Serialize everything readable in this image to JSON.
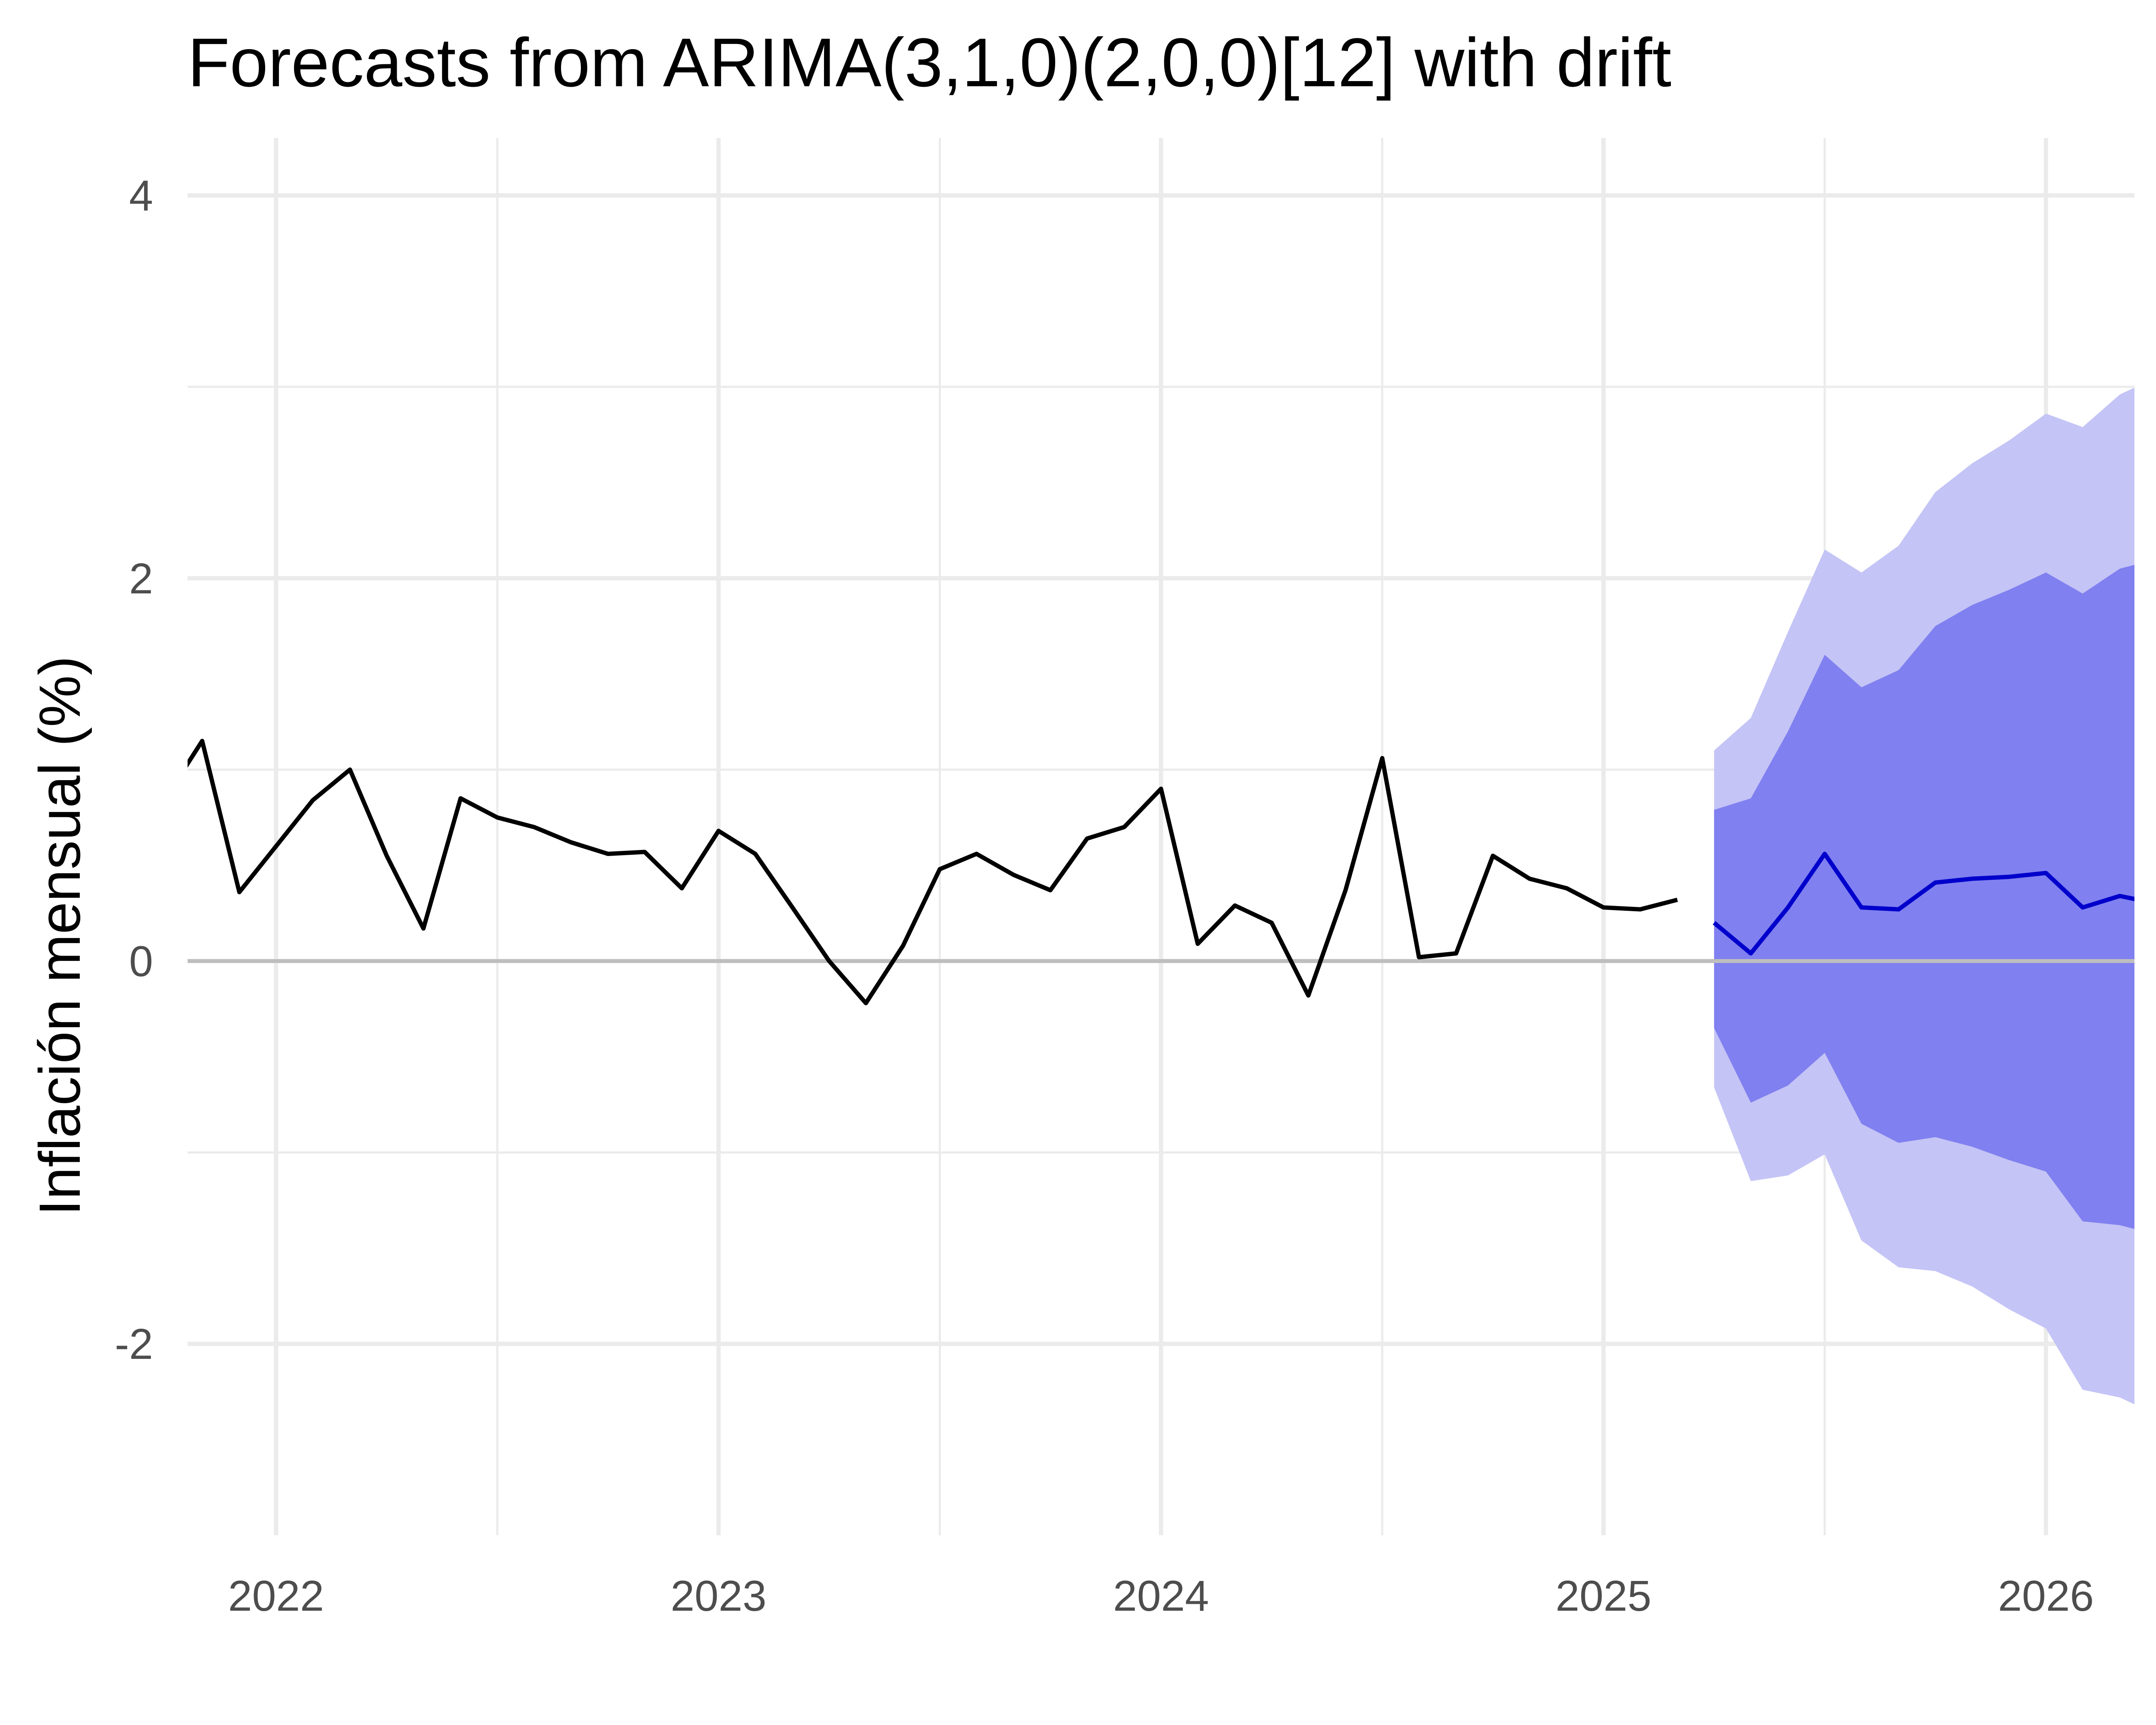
{
  "chart_data": {
    "type": "line",
    "title": "Forecasts from ARIMA(3,1,0)(2,0,0)[12] with drift",
    "xlabel": "",
    "ylabel": "Inflación mensual (%)",
    "xlim": [
      2021.8,
      2026.2
    ],
    "ylim": [
      -3.0,
      4.3
    ],
    "x_ticks": [
      2022,
      2023,
      2024,
      2025,
      2026
    ],
    "x_tick_labels": [
      "2022",
      "2023",
      "2024",
      "2025",
      "2026"
    ],
    "y_ticks": [
      -2,
      0,
      2,
      4
    ],
    "y_tick_labels": [
      "-2",
      "0",
      "2",
      "4"
    ],
    "grid": true,
    "zero_line": 0,
    "legend": "none",
    "colors": {
      "observed": "#000000",
      "forecast": "#0000cc",
      "band80": "#8080f0",
      "band95": "#c4c4f6",
      "grid": "#ebebeb",
      "zero_line": "#bebebe"
    },
    "series": [
      {
        "role": "observed",
        "x": [
          2021.75,
          2021.833,
          2021.917,
          2022.0,
          2022.083,
          2022.167,
          2022.25,
          2022.333,
          2022.417,
          2022.5,
          2022.583,
          2022.667,
          2022.75,
          2022.833,
          2022.917,
          2023.0,
          2023.083,
          2023.167,
          2023.25,
          2023.333,
          2023.417,
          2023.5,
          2023.583,
          2023.667,
          2023.75,
          2023.833,
          2023.917,
          2024.0,
          2024.083,
          2024.167,
          2024.25,
          2024.333,
          2024.417,
          2024.5,
          2024.583,
          2024.667,
          2024.75,
          2024.833,
          2024.917,
          2025.0,
          2025.083,
          2025.167
        ],
        "values": [
          0.85,
          1.15,
          0.36,
          0.6,
          0.84,
          1.0,
          0.55,
          0.17,
          0.85,
          0.75,
          0.7,
          0.62,
          0.56,
          0.57,
          0.38,
          0.68,
          0.56,
          0.28,
          0.0,
          -0.22,
          0.08,
          0.48,
          0.56,
          0.45,
          0.37,
          0.64,
          0.7,
          0.9,
          0.09,
          0.29,
          0.2,
          -0.18,
          0.37,
          1.06,
          0.02,
          0.04,
          0.55,
          0.43,
          0.38,
          0.28,
          0.27,
          0.32
        ]
      },
      {
        "role": "forecast",
        "name": "",
        "x": [
          2025.25,
          2025.333,
          2025.417,
          2025.5,
          2025.583,
          2025.667,
          2025.75,
          2025.833,
          2025.917,
          2026.0,
          2026.083,
          2026.167,
          2026.25
        ],
        "values": [
          0.2,
          0.04,
          0.28,
          0.56,
          0.28,
          0.27,
          0.41,
          0.43,
          0.44,
          0.46,
          0.28,
          0.34,
          0.3
        ],
        "lo80": [
          -0.35,
          -0.74,
          -0.65,
          -0.48,
          -0.85,
          -0.95,
          -0.92,
          -0.97,
          -1.04,
          -1.1,
          -1.36,
          -1.38,
          -1.43
        ],
        "hi80": [
          0.79,
          0.85,
          1.2,
          1.6,
          1.43,
          1.52,
          1.75,
          1.86,
          1.94,
          2.03,
          1.92,
          2.05,
          2.1
        ],
        "lo95": [
          -0.66,
          -1.15,
          -1.12,
          -1.01,
          -1.46,
          -1.6,
          -1.62,
          -1.7,
          -1.82,
          -1.92,
          -2.24,
          -2.28,
          -2.37
        ],
        "hi95": [
          1.1,
          1.27,
          1.72,
          2.15,
          2.03,
          2.17,
          2.45,
          2.6,
          2.72,
          2.86,
          2.79,
          2.96,
          3.05
        ]
      }
    ]
  }
}
